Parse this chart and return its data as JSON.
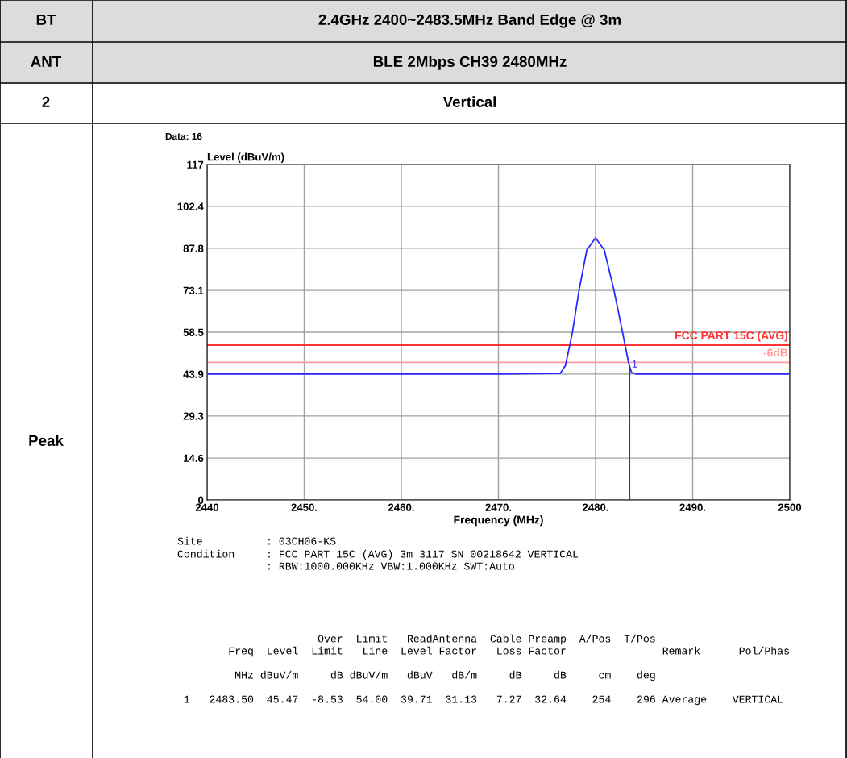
{
  "chart_data": {
    "type": "line",
    "title": "2.4GHz 2400~2483.5MHz Band Edge @ 3m",
    "subtitle": "BLE 2Mbps CH39 2480MHz",
    "xlabel": "Frequency (MHz)",
    "ylabel": "Level (dBuV/m)",
    "series": [
      {
        "color": "#2b2bff",
        "x": [
          2440,
          2450,
          2460,
          2470,
          2476.35,
          2476.9,
          2477.6,
          2478.3,
          2479.1,
          2480.0,
          2480.9,
          2481.9,
          2482.8,
          2483.4,
          2483.7,
          2484.2,
          2490,
          2500
        ],
        "values": [
          43.9,
          43.9,
          43.9,
          43.9,
          44.1,
          46.9,
          58.1,
          73.1,
          87.2,
          91.4,
          87.2,
          73.1,
          58.1,
          47.8,
          44.5,
          43.9,
          43.9,
          43.9
        ]
      },
      {
        "color": "#2b2bff",
        "x": [
          2483.5,
          2483.5
        ],
        "values": [
          0,
          45.5
        ]
      }
    ],
    "xlim": [
      2440,
      2500
    ],
    "xticks": [
      2440,
      {
        "value": 2450,
        "label": "2450."
      },
      {
        "value": 2460,
        "label": "2460."
      },
      {
        "value": 2470,
        "label": "2470."
      },
      {
        "value": 2480,
        "label": "2480."
      },
      {
        "value": 2490,
        "label": "2490."
      },
      2500
    ],
    "ylim": [
      0,
      117
    ],
    "yticks": [
      0,
      14.6,
      29.3,
      43.9,
      58.5,
      73.1,
      87.8,
      102.4,
      117
    ],
    "grid": true,
    "legend": false,
    "marker": "none",
    "line_style": "solid",
    "ref_lines": [
      {
        "axis": "y",
        "value": 54,
        "label": "FCC PART 15C (AVG)",
        "color": "#ff3333"
      },
      {
        "axis": "y",
        "value": 48,
        "label": "-6dB",
        "color": "#ff9999"
      }
    ],
    "annotations": [
      "BT",
      "ANT",
      "2",
      "Vertical",
      "Peak",
      "Data: 16",
      "Site",
      ": 03CH06-KS",
      "Condition",
      ": FCC PART 15C (AVG) 3m 3117 SN 00218642 VERTICAL",
      ": RBW:1000.000KHz VBW:1.000KHz SWT:Auto",
      "                       Over  Limit   ReadAntenna  Cable Preamp  A/Pos  T/Pos",
      "         Freq  Level  Limit   Line  Level Factor   Loss Factor               Remark      Pol/Phas",
      "    _________ ______ ______ ______ ______ ______ ______ ______ ______ ______ __________ ________",
      "          MHz dBuV/m     dB dBuV/m   dBuV   dB/m     dB     dB     cm    deg",
      "  1   2483.50  45.47  -8.53  54.00  39.71  31.13   7.27  32.64    254    296 Average    VERTICAL",
      {
        "text": "1",
        "x": 2483.5,
        "y": 45.5
      }
    ]
  }
}
